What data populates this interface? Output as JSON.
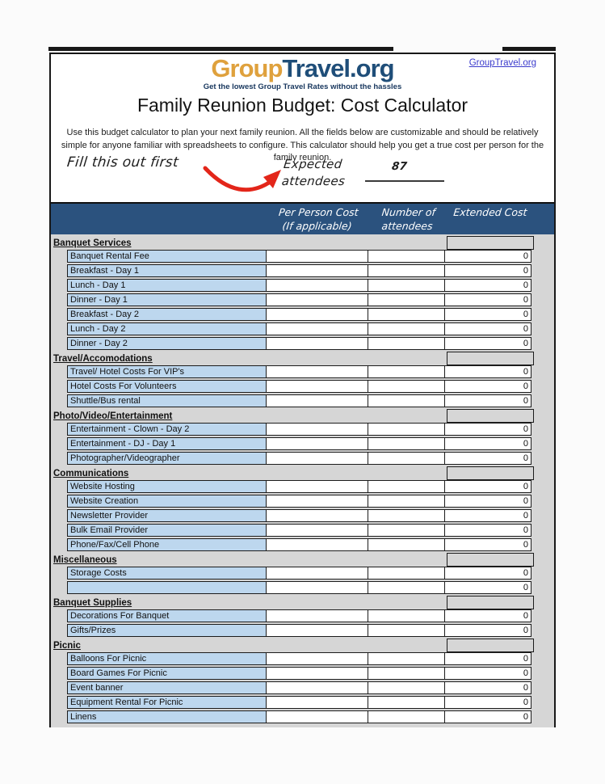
{
  "logo": {
    "part1": "Group",
    "part2": "Travel",
    "part3": ".org",
    "tagline": "Get the lowest Group Travel Rates without the hassles"
  },
  "header_link": "GroupTravel.org",
  "title": "Family Reunion Budget: Cost Calculator",
  "description": "Use this budget calculator to plan your next family reunion. All the fields below are customizable and should be relatively simple for anyone familiar with spreadsheets to configure. This calculator should help you get a true cost per person for the family reunion.",
  "annotation": {
    "note": "Fill this out first",
    "field_label_line1": "Expected",
    "field_label_line2": "attendees",
    "expected_attendees_value": "87"
  },
  "column_headers": {
    "per_person_line1": "Per Person Cost",
    "per_person_line2": "(If applicable)",
    "attendees_line1": "Number of",
    "attendees_line2": "attendees",
    "extended": "Extended Cost"
  },
  "table": {
    "sections": [
      {
        "name": "Banquet Services",
        "rows": [
          {
            "label": "Banquet Rental Fee",
            "per_person_cost": "",
            "number_of_attendees": "",
            "extended_cost": "0"
          },
          {
            "label": "Breakfast - Day 1",
            "per_person_cost": "",
            "number_of_attendees": "",
            "extended_cost": "0"
          },
          {
            "label": "Lunch - Day 1",
            "per_person_cost": "",
            "number_of_attendees": "",
            "extended_cost": "0"
          },
          {
            "label": "Dinner - Day 1",
            "per_person_cost": "",
            "number_of_attendees": "",
            "extended_cost": "0"
          },
          {
            "label": "Breakfast - Day 2",
            "per_person_cost": "",
            "number_of_attendees": "",
            "extended_cost": "0"
          },
          {
            "label": "Lunch - Day 2",
            "per_person_cost": "",
            "number_of_attendees": "",
            "extended_cost": "0"
          },
          {
            "label": "Dinner - Day 2",
            "per_person_cost": "",
            "number_of_attendees": "",
            "extended_cost": "0"
          }
        ]
      },
      {
        "name": "Travel/Accomodations",
        "rows": [
          {
            "label": "Travel/ Hotel Costs For VIP's",
            "per_person_cost": "",
            "number_of_attendees": "",
            "extended_cost": "0"
          },
          {
            "label": "Hotel Costs For Volunteers",
            "per_person_cost": "",
            "number_of_attendees": "",
            "extended_cost": "0"
          },
          {
            "label": "Shuttle/Bus rental",
            "per_person_cost": "",
            "number_of_attendees": "",
            "extended_cost": "0"
          }
        ]
      },
      {
        "name": "Photo/Video/Entertainment",
        "rows": [
          {
            "label": "Entertainment - Clown - Day 2",
            "per_person_cost": "",
            "number_of_attendees": "",
            "extended_cost": "0"
          },
          {
            "label": "Entertainment - DJ - Day 1",
            "per_person_cost": "",
            "number_of_attendees": "",
            "extended_cost": "0"
          },
          {
            "label": "Photographer/Videographer",
            "per_person_cost": "",
            "number_of_attendees": "",
            "extended_cost": "0"
          }
        ]
      },
      {
        "name": "Communications",
        "rows": [
          {
            "label": "Website Hosting",
            "per_person_cost": "",
            "number_of_attendees": "",
            "extended_cost": "0"
          },
          {
            "label": "Website Creation",
            "per_person_cost": "",
            "number_of_attendees": "",
            "extended_cost": "0"
          },
          {
            "label": "Newsletter Provider",
            "per_person_cost": "",
            "number_of_attendees": "",
            "extended_cost": "0"
          },
          {
            "label": "Bulk Email Provider",
            "per_person_cost": "",
            "number_of_attendees": "",
            "extended_cost": "0"
          },
          {
            "label": "Phone/Fax/Cell Phone",
            "per_person_cost": "",
            "number_of_attendees": "",
            "extended_cost": "0"
          }
        ]
      },
      {
        "name": "Miscellaneous",
        "rows": [
          {
            "label": "Storage Costs",
            "per_person_cost": "",
            "number_of_attendees": "",
            "extended_cost": "0"
          },
          {
            "label": "",
            "per_person_cost": "",
            "number_of_attendees": "",
            "extended_cost": "0"
          }
        ]
      },
      {
        "name": "Banquet Supplies",
        "rows": [
          {
            "label": "Decorations For Banquet",
            "per_person_cost": "",
            "number_of_attendees": "",
            "extended_cost": "0"
          },
          {
            "label": "Gifts/Prizes",
            "per_person_cost": "",
            "number_of_attendees": "",
            "extended_cost": "0"
          }
        ]
      },
      {
        "name": "Picnic",
        "rows": [
          {
            "label": "Balloons For Picnic",
            "per_person_cost": "",
            "number_of_attendees": "",
            "extended_cost": "0"
          },
          {
            "label": "Board Games For Picnic",
            "per_person_cost": "",
            "number_of_attendees": "",
            "extended_cost": "0"
          },
          {
            "label": "Event banner",
            "per_person_cost": "",
            "number_of_attendees": "",
            "extended_cost": "0"
          },
          {
            "label": "Equipment Rental For Picnic",
            "per_person_cost": "",
            "number_of_attendees": "",
            "extended_cost": "0"
          },
          {
            "label": "Linens",
            "per_person_cost": "",
            "number_of_attendees": "",
            "extended_cost": "0"
          }
        ]
      }
    ]
  },
  "colors": {
    "navy_header": "#2B527E",
    "logo_orange": "#DFA13D",
    "logo_navy": "#1F4E79",
    "item_cell_blue": "#BDD7EE",
    "table_gray": "#D6D6D6",
    "link_blue": "#3A3ACC",
    "arrow_red": "#E3261A"
  }
}
